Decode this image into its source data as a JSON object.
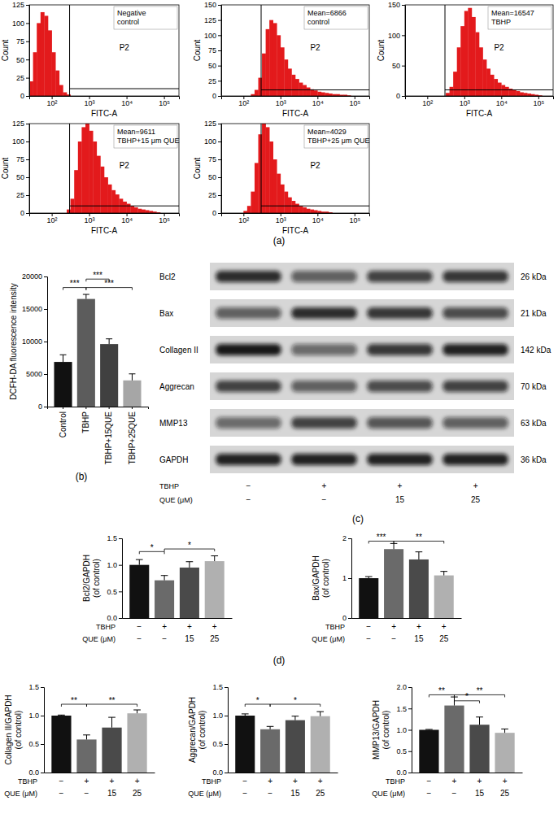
{
  "panel_labels": [
    "(a)",
    "(b)",
    "(c)",
    "(d)"
  ],
  "chart_data": [
    {
      "type": "histogram",
      "annotation": [
        "Negative",
        "control"
      ],
      "x_label": "FITC-A",
      "y_label": "Count",
      "color": "#e31a1c",
      "log": "x",
      "bins": [
        25.1,
        31.6,
        39.8,
        50.1,
        63.1,
        79.4,
        100,
        125.9,
        158.5,
        199.5,
        251.2,
        316.2,
        398.1,
        501.2,
        631,
        794.3,
        1000,
        1258.9,
        1584.9,
        1995.3,
        2511.9,
        3162.3,
        3981.1,
        5011.9,
        6309.6,
        7943.3,
        10000,
        12589,
        15849,
        19953,
        25119,
        31623,
        39811,
        50119,
        63096,
        79433,
        100000,
        125893,
        158489,
        199526,
        251189
      ],
      "counts": [
        20,
        60,
        100,
        115,
        110,
        90,
        60,
        35,
        15,
        5,
        2,
        0,
        0,
        0,
        0,
        0,
        0,
        0,
        0,
        0,
        0,
        0,
        0,
        0,
        0,
        0,
        0,
        0,
        0,
        0,
        0,
        0,
        0,
        0,
        0,
        0,
        0,
        0,
        0,
        0
      ],
      "xlim": [
        25.1,
        251189
      ],
      "xticks": [
        {
          "value": 100,
          "label": "10²"
        },
        {
          "value": 1000,
          "label": "10³"
        },
        {
          "value": 10000,
          "label": "10⁴"
        },
        {
          "value": 100000,
          "label": "10⁵"
        }
      ],
      "ylim": [
        0,
        125
      ],
      "yticks": [
        0,
        25,
        50,
        75,
        100,
        125
      ],
      "gate": {
        "value": 300,
        "count": 10,
        "label": "P2"
      }
    },
    {
      "type": "histogram",
      "annotation": [
        "Mean=6866",
        "control"
      ],
      "x_label": "FITC-A",
      "y_label": "Count",
      "color": "#e31a1c",
      "log": "x",
      "bins": [
        25.1,
        31.6,
        39.8,
        50.1,
        63.1,
        79.4,
        100,
        125.9,
        158.5,
        199.5,
        251.2,
        316.2,
        398.1,
        501.2,
        631,
        794.3,
        1000,
        1258.9,
        1584.9,
        1995.3,
        2511.9,
        3162.3,
        3981.1,
        5011.9,
        6309.6,
        7943.3,
        10000,
        12589,
        15849,
        19953,
        25119,
        31623,
        39811,
        50119,
        63096,
        79433,
        100000,
        125893,
        158489,
        199526,
        251189
      ],
      "counts": [
        0,
        0,
        0,
        0,
        0,
        0,
        0,
        0,
        3,
        10,
        30,
        70,
        110,
        125,
        120,
        100,
        80,
        60,
        45,
        35,
        28,
        22,
        18,
        14,
        11,
        9,
        7,
        6,
        5,
        4,
        3,
        3,
        2,
        2,
        1,
        0,
        0,
        0,
        0,
        0
      ],
      "xlim": [
        25.1,
        251189
      ],
      "xticks": [
        {
          "value": 100,
          "label": "10²"
        },
        {
          "value": 1000,
          "label": "10³"
        },
        {
          "value": 10000,
          "label": "10⁴"
        },
        {
          "value": 100000,
          "label": "10⁵"
        }
      ],
      "ylim": [
        0,
        150
      ],
      "yticks": [
        0,
        25,
        50,
        75,
        100,
        125,
        150
      ],
      "gate": {
        "value": 300,
        "count": 10,
        "label": "P2"
      }
    },
    {
      "type": "histogram",
      "annotation": [
        "Mean=16547",
        "TBHP"
      ],
      "x_label": "FITC-A",
      "y_label": "Count",
      "color": "#e31a1c",
      "log": "x",
      "bins": [
        25.1,
        31.6,
        39.8,
        50.1,
        63.1,
        79.4,
        100,
        125.9,
        158.5,
        199.5,
        251.2,
        316.2,
        398.1,
        501.2,
        631,
        794.3,
        1000,
        1258.9,
        1584.9,
        1995.3,
        2511.9,
        3162.3,
        3981.1,
        5011.9,
        6309.6,
        7943.3,
        10000,
        12589,
        15849,
        19953,
        25119,
        31623,
        39811,
        50119,
        63096,
        79433,
        100000,
        125893,
        158489,
        199526,
        251189
      ],
      "counts": [
        0,
        0,
        0,
        0,
        0,
        0,
        0,
        0,
        0,
        0,
        0,
        5,
        15,
        40,
        80,
        115,
        140,
        145,
        130,
        105,
        80,
        60,
        45,
        35,
        28,
        22,
        18,
        15,
        12,
        10,
        8,
        6,
        5,
        4,
        3,
        2,
        1,
        0,
        0,
        0
      ],
      "xlim": [
        25.1,
        251189
      ],
      "xticks": [
        {
          "value": 100,
          "label": "10²"
        },
        {
          "value": 1000,
          "label": "10³"
        },
        {
          "value": 10000,
          "label": "10⁴"
        },
        {
          "value": 100000,
          "label": "10⁵"
        }
      ],
      "ylim": [
        0,
        150
      ],
      "yticks": [
        0,
        50,
        100,
        150
      ],
      "gate": {
        "value": 300,
        "count": 10,
        "label": "P2"
      }
    },
    {
      "type": "histogram",
      "annotation": [
        "Mean=9611",
        "TBHP+15 μm QUE"
      ],
      "x_label": "FITC-A",
      "y_label": "Count",
      "color": "#e31a1c",
      "log": "x",
      "bins": [
        25.1,
        31.6,
        39.8,
        50.1,
        63.1,
        79.4,
        100,
        125.9,
        158.5,
        199.5,
        251.2,
        316.2,
        398.1,
        501.2,
        631,
        794.3,
        1000,
        1258.9,
        1584.9,
        1995.3,
        2511.9,
        3162.3,
        3981.1,
        5011.9,
        6309.6,
        7943.3,
        10000,
        12589,
        15849,
        19953,
        25119,
        31623,
        39811,
        50119,
        63096,
        79433,
        100000,
        125893,
        158489,
        199526,
        251189
      ],
      "counts": [
        0,
        0,
        0,
        0,
        0,
        0,
        0,
        0,
        0,
        0,
        5,
        20,
        60,
        100,
        120,
        125,
        115,
        100,
        80,
        65,
        50,
        40,
        32,
        26,
        20,
        16,
        13,
        10,
        8,
        6,
        5,
        4,
        3,
        2,
        1,
        0,
        0,
        0,
        0,
        0
      ],
      "xlim": [
        25.1,
        251189
      ],
      "xticks": [
        {
          "value": 100,
          "label": "10²"
        },
        {
          "value": 1000,
          "label": "10³"
        },
        {
          "value": 10000,
          "label": "10⁴"
        },
        {
          "value": 100000,
          "label": "10⁵"
        }
      ],
      "ylim": [
        0,
        125
      ],
      "yticks": [
        0,
        25,
        50,
        75,
        100,
        125
      ],
      "gate": {
        "value": 300,
        "count": 10,
        "label": "P2"
      }
    },
    {
      "type": "histogram",
      "annotation": [
        "Mean=4029",
        "TBHP+25 μm QUE"
      ],
      "x_label": "FITC-A",
      "y_label": "Count",
      "color": "#e31a1c",
      "log": "x",
      "bins": [
        25.1,
        31.6,
        39.8,
        50.1,
        63.1,
        79.4,
        100,
        125.9,
        158.5,
        199.5,
        251.2,
        316.2,
        398.1,
        501.2,
        631,
        794.3,
        1000,
        1258.9,
        1584.9,
        1995.3,
        2511.9,
        3162.3,
        3981.1,
        5011.9,
        6309.6,
        7943.3,
        10000,
        12589,
        15849,
        19953,
        25119,
        31623,
        39811,
        50119,
        63096,
        79433,
        100000,
        125893,
        158489,
        199526,
        251189
      ],
      "counts": [
        0,
        0,
        0,
        0,
        0,
        0,
        3,
        10,
        30,
        70,
        110,
        125,
        120,
        100,
        75,
        55,
        40,
        30,
        22,
        17,
        13,
        10,
        8,
        6,
        5,
        4,
        3,
        2,
        2,
        1,
        0,
        0,
        0,
        0,
        0,
        0,
        0,
        0,
        0,
        0
      ],
      "xlim": [
        25.1,
        251189
      ],
      "xticks": [
        {
          "value": 100,
          "label": "10²"
        },
        {
          "value": 1000,
          "label": "10³"
        },
        {
          "value": 10000,
          "label": "10⁴"
        },
        {
          "value": 100000,
          "label": "10⁵"
        }
      ],
      "ylim": [
        0,
        125
      ],
      "yticks": [
        0,
        25,
        50,
        75,
        100,
        125
      ],
      "gate": {
        "value": 300,
        "count": 10,
        "label": "P2"
      }
    },
    {
      "type": "bar",
      "categories": [
        "Control",
        "TBHP",
        "TBHP+15QUE",
        "TBHP+25QUE"
      ],
      "values": [
        6866,
        16547,
        9611,
        4029
      ],
      "errors": [
        1100,
        700,
        800,
        1000
      ],
      "colors": [
        "#111111",
        "#5c5c5c",
        "#404040",
        "#a6a6a6"
      ],
      "y_label": "DCFH-DA fluorescence intensity",
      "ylim": [
        0,
        20000
      ],
      "yticks": [
        0,
        5000,
        10000,
        15000,
        20000
      ],
      "significance": [
        {
          "from": 0,
          "to": 1,
          "y": 18300,
          "label": "***"
        },
        {
          "from": 1,
          "to": 2,
          "y": 19600,
          "label": "***"
        },
        {
          "from": 1,
          "to": 3,
          "y": 18300,
          "label": "***"
        }
      ]
    },
    {
      "type": "bar",
      "categories": [
        null,
        null,
        null,
        null
      ],
      "values": [
        1.0,
        0.71,
        0.95,
        1.07
      ],
      "errors": [
        0.1,
        0.09,
        0.11,
        0.1
      ],
      "colors": [
        "#111111",
        "#6a6a6a",
        "#4a4a4a",
        "#b0b0b0"
      ],
      "y_label": [
        "Bcl2/GAPDH",
        "(of control)"
      ],
      "ylim": [
        0,
        1.5
      ],
      "yticks": [
        {
          "value": 0,
          "label": "0.0"
        },
        0.5,
        {
          "value": 1,
          "label": "1.0"
        },
        1.5
      ],
      "significance": [
        {
          "from": 0,
          "to": 1,
          "y": 1.25,
          "label": "*"
        },
        {
          "from": 1,
          "to": 3,
          "y": 1.3,
          "label": "*"
        }
      ],
      "conditions": [
        {
          "label": "TBHP",
          "values": [
            "−",
            "+",
            "+",
            "+"
          ]
        },
        {
          "label": "QUE (μM)",
          "values": [
            "−",
            "−",
            "15",
            "25"
          ]
        }
      ]
    },
    {
      "type": "bar",
      "categories": [
        null,
        null,
        null,
        null
      ],
      "values": [
        1.0,
        1.73,
        1.47,
        1.07
      ],
      "errors": [
        0.04,
        0.14,
        0.19,
        0.1
      ],
      "colors": [
        "#111111",
        "#6a6a6a",
        "#4a4a4a",
        "#b0b0b0"
      ],
      "y_label": [
        "Bax/GAPDH",
        "(of control)"
      ],
      "ylim": [
        0,
        2
      ],
      "yticks": [
        0,
        1,
        2
      ],
      "significance": [
        {
          "from": 0,
          "to": 1,
          "y": 1.93,
          "label": "***"
        },
        {
          "from": 1,
          "to": 3,
          "y": 1.93,
          "label": "**"
        }
      ],
      "conditions": [
        {
          "label": "TBHP",
          "values": [
            "−",
            "+",
            "+",
            "+"
          ]
        },
        {
          "label": "QUE (μM)",
          "values": [
            "−",
            "−",
            "15",
            "25"
          ]
        }
      ]
    },
    {
      "type": "bar",
      "categories": [
        null,
        null,
        null,
        null
      ],
      "values": [
        1.0,
        0.58,
        0.79,
        1.04
      ],
      "errors": [
        0.01,
        0.08,
        0.18,
        0.06
      ],
      "colors": [
        "#111111",
        "#6a6a6a",
        "#4a4a4a",
        "#b0b0b0"
      ],
      "y_label": [
        "Collagen II/GAPDH",
        "(of control)"
      ],
      "ylim": [
        0,
        1.5
      ],
      "yticks": [
        {
          "value": 0,
          "label": "0.0"
        },
        0.5,
        {
          "value": 1,
          "label": "1.0"
        },
        1.5
      ],
      "significance": [
        {
          "from": 0,
          "to": 1,
          "y": 1.2,
          "label": "**"
        },
        {
          "from": 1,
          "to": 3,
          "y": 1.2,
          "label": "**"
        }
      ],
      "conditions": [
        {
          "label": "TBHP",
          "values": [
            "−",
            "+",
            "+",
            "+"
          ]
        },
        {
          "label": "QUE (μM)",
          "values": [
            "−",
            "−",
            "15",
            "25"
          ]
        }
      ]
    },
    {
      "type": "bar",
      "categories": [
        null,
        null,
        null,
        null
      ],
      "values": [
        1.0,
        0.76,
        0.92,
        0.99
      ],
      "errors": [
        0.03,
        0.05,
        0.07,
        0.08
      ],
      "colors": [
        "#111111",
        "#6a6a6a",
        "#4a4a4a",
        "#b0b0b0"
      ],
      "y_label": [
        "Aggrecan/GAPDH",
        "(of control)"
      ],
      "ylim": [
        0,
        1.5
      ],
      "yticks": [
        {
          "value": 0,
          "label": "0.0"
        },
        0.5,
        {
          "value": 1,
          "label": "1.0"
        },
        1.5
      ],
      "significance": [
        {
          "from": 0,
          "to": 1,
          "y": 1.2,
          "label": "*"
        },
        {
          "from": 1,
          "to": 3,
          "y": 1.2,
          "label": "*"
        }
      ],
      "conditions": [
        {
          "label": "TBHP",
          "values": [
            "−",
            "+",
            "+",
            "+"
          ]
        },
        {
          "label": "QUE (μM)",
          "values": [
            "−",
            "−",
            "15",
            "25"
          ]
        }
      ]
    },
    {
      "type": "bar",
      "categories": [
        null,
        null,
        null,
        null
      ],
      "values": [
        1.0,
        1.57,
        1.12,
        0.93
      ],
      "errors": [
        0.01,
        0.2,
        0.18,
        0.09
      ],
      "colors": [
        "#111111",
        "#6a6a6a",
        "#4a4a4a",
        "#b0b0b0"
      ],
      "y_label": [
        "MMP13/GAPDH",
        "(of control)"
      ],
      "ylim": [
        0,
        2
      ],
      "yticks": [
        {
          "value": 0,
          "label": "0.0"
        },
        0.5,
        {
          "value": 1,
          "label": "1.0"
        },
        1.5,
        {
          "value": 2,
          "label": "2.0"
        }
      ],
      "significance": [
        {
          "from": 0,
          "to": 1,
          "y": 1.82,
          "label": "**"
        },
        {
          "from": 1,
          "to": 2,
          "y": 1.68,
          "label": "*"
        },
        {
          "from": 1,
          "to": 3,
          "y": 1.82,
          "label": "**"
        }
      ],
      "conditions": [
        {
          "label": "TBHP",
          "values": [
            "−",
            "+",
            "+",
            "+"
          ]
        },
        {
          "label": "QUE (μM)",
          "values": [
            "−",
            "−",
            "15",
            "25"
          ]
        }
      ]
    }
  ],
  "blot": {
    "rows": [
      {
        "label": "Bcl2",
        "size": "26 kDa",
        "density": [
          0.85,
          0.6,
          0.75,
          0.8
        ]
      },
      {
        "label": "Bax",
        "size": "21 kDa",
        "density": [
          0.6,
          0.85,
          0.8,
          0.7
        ]
      },
      {
        "label": "Collagen II",
        "size": "142 kDa",
        "density": [
          0.95,
          0.55,
          0.8,
          0.9
        ]
      },
      {
        "label": "Aggrecan",
        "size": "70 kDa",
        "density": [
          0.75,
          0.6,
          0.7,
          0.75
        ]
      },
      {
        "label": "MMP13",
        "size": "63 kDa",
        "density": [
          0.55,
          0.75,
          0.65,
          0.6
        ]
      },
      {
        "label": "GAPDH",
        "size": "36 kDa",
        "density": [
          0.9,
          0.9,
          0.9,
          0.9
        ]
      }
    ],
    "conditions": [
      {
        "label": "TBHP",
        "values": [
          "−",
          "+",
          "+",
          "+"
        ]
      },
      {
        "label": "QUE (μM)",
        "values": [
          "−",
          "−",
          "15",
          "25"
        ]
      }
    ]
  }
}
